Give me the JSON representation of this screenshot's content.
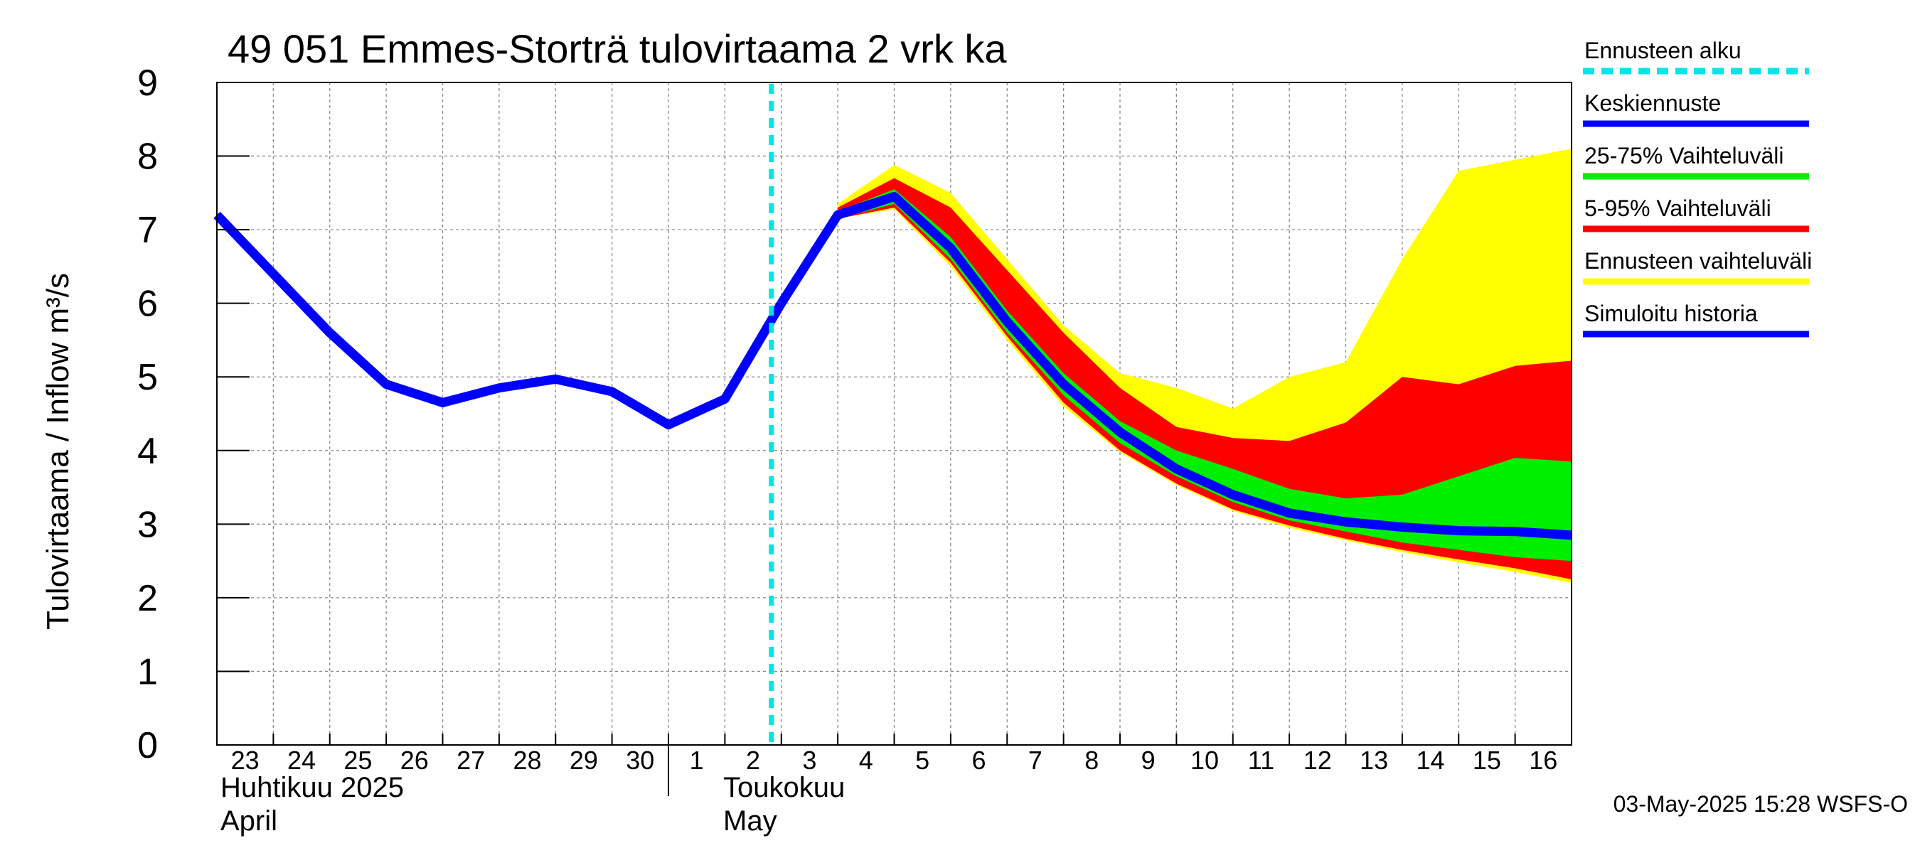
{
  "chart_data": {
    "type": "area",
    "title": "49 051 Emmes-Storträ tulovirtaama 2 vrk ka",
    "ylabel": "Tulovirtaama / Inflow    m³/s",
    "ylim": [
      0,
      9
    ],
    "yticks": [
      "0",
      "1",
      "2",
      "3",
      "4",
      "5",
      "6",
      "7",
      "8",
      "9"
    ],
    "grid": true,
    "legend_position": "right",
    "x_tick_labels": [
      "23",
      "24",
      "25",
      "26",
      "27",
      "28",
      "29",
      "30",
      "1",
      "2",
      "3",
      "4",
      "5",
      "6",
      "7",
      "8",
      "9",
      "10",
      "11",
      "12",
      "13",
      "14",
      "15",
      "16"
    ],
    "x_dates": [
      "2025-04-23",
      "2025-04-24",
      "2025-04-25",
      "2025-04-26",
      "2025-04-27",
      "2025-04-28",
      "2025-04-29",
      "2025-04-30",
      "2025-05-01",
      "2025-05-02",
      "2025-05-03",
      "2025-05-04",
      "2025-05-05",
      "2025-05-06",
      "2025-05-07",
      "2025-05-08",
      "2025-05-09",
      "2025-05-10",
      "2025-05-11",
      "2025-05-12",
      "2025-05-13",
      "2025-05-14",
      "2025-05-15",
      "2025-05-16",
      "2025-05-17"
    ],
    "month_labels": [
      {
        "line1": "Huhtikuu  2025",
        "line2": "April"
      },
      {
        "line1": "Toukokuu",
        "line2": "May"
      }
    ],
    "forecast_start": "2025-05-03",
    "series": [
      {
        "name": "Simuloitu historia",
        "color": "#0000ff",
        "x": [
          "2025-04-23",
          "2025-04-24",
          "2025-04-25",
          "2025-04-26",
          "2025-04-27",
          "2025-04-28",
          "2025-04-29",
          "2025-04-30",
          "2025-05-01",
          "2025-05-02",
          "2025-05-03"
        ],
        "values": [
          7.2,
          6.4,
          5.6,
          4.9,
          4.65,
          4.85,
          4.97,
          4.8,
          4.35,
          4.7,
          6.0
        ]
      },
      {
        "name": "Keskiennuste",
        "color": "#0000ff",
        "x": [
          "2025-05-03",
          "2025-05-04",
          "2025-05-05",
          "2025-05-06",
          "2025-05-07",
          "2025-05-08",
          "2025-05-09",
          "2025-05-10",
          "2025-05-11",
          "2025-05-12",
          "2025-05-13",
          "2025-05-14",
          "2025-05-15",
          "2025-05-16",
          "2025-05-17"
        ],
        "values": [
          6.0,
          7.2,
          7.45,
          6.75,
          5.75,
          4.9,
          4.25,
          3.75,
          3.4,
          3.15,
          3.03,
          2.96,
          2.91,
          2.9,
          2.85
        ]
      },
      {
        "name": "25-75% Vaihteluväli",
        "color": "#00ee00",
        "x": [
          "2025-05-04",
          "2025-05-05",
          "2025-05-06",
          "2025-05-07",
          "2025-05-08",
          "2025-05-09",
          "2025-05-10",
          "2025-05-11",
          "2025-05-12",
          "2025-05-13",
          "2025-05-14",
          "2025-05-15",
          "2025-05-16",
          "2025-05-17"
        ],
        "upper": [
          7.25,
          7.55,
          6.9,
          5.9,
          5.05,
          4.4,
          4.0,
          3.75,
          3.48,
          3.35,
          3.4,
          3.65,
          3.9,
          3.85
        ],
        "lower": [
          7.15,
          7.35,
          6.6,
          5.6,
          4.75,
          4.1,
          3.65,
          3.3,
          3.05,
          2.9,
          2.75,
          2.65,
          2.55,
          2.5
        ]
      },
      {
        "name": "5-95% Vaihteluväli",
        "color": "#ff0000",
        "x": [
          "2025-05-04",
          "2025-05-05",
          "2025-05-06",
          "2025-05-07",
          "2025-05-08",
          "2025-05-09",
          "2025-05-10",
          "2025-05-11",
          "2025-05-12",
          "2025-05-13",
          "2025-05-14",
          "2025-05-15",
          "2025-05-16",
          "2025-05-17"
        ],
        "upper": [
          7.3,
          7.7,
          7.3,
          6.45,
          5.6,
          4.85,
          4.32,
          4.17,
          4.13,
          4.38,
          5.0,
          4.9,
          5.15,
          5.22
        ],
        "lower": [
          7.15,
          7.3,
          6.55,
          5.55,
          4.65,
          4.0,
          3.55,
          3.2,
          2.98,
          2.8,
          2.65,
          2.52,
          2.4,
          2.25
        ]
      },
      {
        "name": "Ennusteen vaihteluväli",
        "color": "#ffff00",
        "x": [
          "2025-05-04",
          "2025-05-05",
          "2025-05-06",
          "2025-05-07",
          "2025-05-08",
          "2025-05-09",
          "2025-05-10",
          "2025-05-11",
          "2025-05-12",
          "2025-05-13",
          "2025-05-14",
          "2025-05-15",
          "2025-05-16",
          "2025-05-17"
        ],
        "upper": [
          7.35,
          7.88,
          7.5,
          6.6,
          5.7,
          5.05,
          4.85,
          4.57,
          5.0,
          5.2,
          6.6,
          7.8,
          7.95,
          8.1
        ],
        "lower": [
          7.15,
          7.28,
          6.5,
          5.5,
          4.6,
          3.98,
          3.53,
          3.18,
          2.95,
          2.78,
          2.62,
          2.48,
          2.35,
          2.2
        ]
      }
    ],
    "legend": [
      {
        "label": "Ennusteen alku",
        "color": "#00e5e5",
        "style": "dashed"
      },
      {
        "label": "Keskiennuste",
        "color": "#0000ff",
        "style": "solid"
      },
      {
        "label": "25-75% Vaihteluväli",
        "color": "#00ee00",
        "style": "solid"
      },
      {
        "label": "5-95% Vaihteluväli",
        "color": "#ff0000",
        "style": "solid"
      },
      {
        "label": "Ennusteen vaihteluväli",
        "color": "#ffff00",
        "style": "solid"
      },
      {
        "label": "Simuloitu historia",
        "color": "#0000ff",
        "style": "solid"
      }
    ],
    "footer": "03-May-2025 15:28 WSFS-O"
  }
}
